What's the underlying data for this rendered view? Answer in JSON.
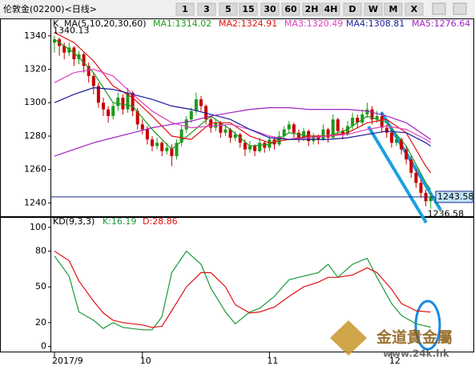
{
  "toolbar": {
    "title": "伦敦金(02200)<日线>",
    "buttons": [
      "1",
      "3",
      "5",
      "15",
      "30",
      "60",
      "2H",
      "4H",
      "D",
      "W",
      "M",
      "X"
    ]
  },
  "watermark": {
    "name": "金道貴金屬",
    "url": "www.24k.hk"
  },
  "chart_data": [
    {
      "type": "candlestick",
      "header": "K",
      "indicator": "MA(5,10,20,30,60)",
      "categories": [
        "2017/9",
        null,
        null,
        null,
        null,
        null,
        null,
        null,
        null,
        null,
        null,
        null,
        null,
        null,
        null,
        null,
        null,
        null,
        "10",
        null,
        null,
        null,
        null,
        null,
        null,
        null,
        null,
        null,
        null,
        null,
        null,
        null,
        null,
        null,
        null,
        null,
        null,
        null,
        null,
        null,
        null,
        null,
        null,
        null,
        "11",
        null,
        null,
        null,
        null,
        null,
        null,
        null,
        null,
        null,
        null,
        null,
        null,
        null,
        null,
        null,
        null,
        null,
        null,
        null,
        null,
        null,
        null,
        null,
        null,
        "12",
        null,
        null,
        null,
        null,
        null,
        null,
        null,
        null
      ],
      "open": [
        1336,
        1338,
        1334,
        1330,
        1333,
        1326,
        1329,
        1322,
        1316,
        1310,
        1300,
        1296,
        1292,
        1298,
        1303,
        1296,
        1306,
        1295,
        1287,
        1284,
        1278,
        1274,
        1276,
        1271,
        1273,
        1268,
        1276,
        1284,
        1290,
        1295,
        1302,
        1298,
        1290,
        1285,
        1288,
        1282,
        1284,
        1279,
        1281,
        1276,
        1272,
        1274,
        1271,
        1276,
        1273,
        1278,
        1275,
        1280,
        1284,
        1287,
        1282,
        1279,
        1283,
        1277,
        1280,
        1278,
        1284,
        1279,
        1290,
        1283,
        1281,
        1286,
        1291,
        1288,
        1293,
        1296,
        1290,
        1292,
        1285,
        1282,
        1276,
        1278,
        1272,
        1266,
        1258,
        1252,
        1246,
        1241
      ],
      "high": [
        1340.13,
        1339,
        1336,
        1336,
        1334,
        1331,
        1330,
        1324,
        1318,
        1312,
        1303,
        1298,
        1300,
        1306,
        1305,
        1309,
        1307,
        1297,
        1290,
        1286,
        1280,
        1279,
        1277,
        1276,
        1275,
        1278,
        1286,
        1292,
        1297,
        1306,
        1304,
        1299,
        1292,
        1290,
        1289,
        1287,
        1285,
        1283,
        1282,
        1278,
        1277,
        1275,
        1279,
        1277,
        1280,
        1279,
        1283,
        1286,
        1289,
        1288,
        1284,
        1285,
        1284,
        1282,
        1281,
        1287,
        1285,
        1293,
        1291,
        1285,
        1289,
        1294,
        1293,
        1296,
        1300,
        1298,
        1295,
        1294,
        1287,
        1284,
        1281,
        1279,
        1274,
        1268,
        1260,
        1254,
        1248,
        1246
      ],
      "low": [
        1330,
        1328,
        1326,
        1328,
        1322,
        1323,
        1318,
        1312,
        1305,
        1297,
        1292,
        1288,
        1290,
        1295,
        1293,
        1294,
        1292,
        1284,
        1281,
        1275,
        1271,
        1272,
        1268,
        1269,
        1262,
        1266,
        1274,
        1282,
        1288,
        1293,
        1295,
        1287,
        1282,
        1283,
        1279,
        1280,
        1276,
        1277,
        1273,
        1268,
        1270,
        1268,
        1270,
        1270,
        1271,
        1272,
        1274,
        1278,
        1282,
        1279,
        1276,
        1277,
        1274,
        1275,
        1275,
        1277,
        1276,
        1278,
        1281,
        1278,
        1280,
        1284,
        1285,
        1286,
        1291,
        1287,
        1288,
        1282,
        1279,
        1273,
        1274,
        1269,
        1263,
        1255,
        1249,
        1243,
        1238,
        1236.58
      ],
      "close": [
        1338,
        1334,
        1330,
        1333,
        1326,
        1329,
        1322,
        1316,
        1310,
        1300,
        1296,
        1292,
        1298,
        1303,
        1296,
        1306,
        1295,
        1287,
        1284,
        1278,
        1274,
        1276,
        1271,
        1273,
        1268,
        1276,
        1284,
        1290,
        1295,
        1302,
        1298,
        1290,
        1285,
        1288,
        1282,
        1284,
        1279,
        1281,
        1276,
        1272,
        1274,
        1271,
        1276,
        1273,
        1278,
        1275,
        1280,
        1284,
        1287,
        1282,
        1279,
        1283,
        1277,
        1280,
        1278,
        1284,
        1279,
        1290,
        1283,
        1281,
        1286,
        1291,
        1288,
        1293,
        1296,
        1290,
        1292,
        1285,
        1282,
        1276,
        1278,
        1272,
        1266,
        1258,
        1252,
        1246,
        1241,
        1243.58
      ],
      "up_color": "#1e9a1e",
      "down_color": "#c80000",
      "price_line_color": "#1c2f8c",
      "ylim": [
        1232,
        1350
      ],
      "yticks": [
        1240,
        1260,
        1280,
        1300,
        1320,
        1340
      ],
      "series": [
        {
          "name": "MA1:1314.02",
          "color": "#1a9a1a",
          "x": [
            0,
            4,
            8,
            12,
            16,
            20,
            24,
            28,
            32,
            36,
            40,
            44,
            48,
            52,
            56,
            60,
            64,
            68,
            72,
            76,
            77
          ],
          "values": [
            1338,
            1330,
            1318,
            1300,
            1298,
            1284,
            1272,
            1282,
            1292,
            1284,
            1274,
            1275,
            1282,
            1280,
            1280,
            1284,
            1292,
            1288,
            1274,
            1252,
            1248
          ]
        },
        {
          "name": "MA2:1324.91",
          "color": "#e01010",
          "x": [
            0,
            4,
            8,
            12,
            16,
            20,
            24,
            28,
            32,
            36,
            40,
            44,
            48,
            52,
            56,
            60,
            64,
            68,
            72,
            76,
            77
          ],
          "values": [
            1342,
            1336,
            1325,
            1310,
            1303,
            1292,
            1280,
            1278,
            1288,
            1288,
            1280,
            1276,
            1278,
            1280,
            1280,
            1282,
            1288,
            1290,
            1282,
            1262,
            1258
          ]
        },
        {
          "name": "MA3:1320.49",
          "color": "#e040c0",
          "x": [
            0,
            4,
            8,
            12,
            16,
            20,
            24,
            28,
            32,
            36,
            40,
            44,
            48,
            52,
            56,
            60,
            64,
            68,
            72,
            76,
            77
          ],
          "values": [
            1312,
            1318,
            1320,
            1316,
            1305,
            1295,
            1288,
            1285,
            1286,
            1287,
            1284,
            1280,
            1278,
            1279,
            1280,
            1281,
            1284,
            1286,
            1284,
            1278,
            1276
          ]
        },
        {
          "name": "MA4:1308.81",
          "color": "#1a1a9a",
          "x": [
            0,
            4,
            8,
            12,
            16,
            20,
            24,
            28,
            32,
            36,
            40,
            44,
            48,
            52,
            56,
            60,
            64,
            68,
            72,
            76,
            77
          ],
          "values": [
            1300,
            1305,
            1309,
            1308,
            1305,
            1302,
            1298,
            1296,
            1293,
            1290,
            1284,
            1279,
            1278,
            1278,
            1278,
            1279,
            1281,
            1283,
            1282,
            1276,
            1274
          ]
        },
        {
          "name": "MA5:1276.64",
          "color": "#a020c0",
          "x": [
            0,
            4,
            8,
            12,
            16,
            20,
            24,
            28,
            32,
            36,
            40,
            44,
            48,
            52,
            56,
            60,
            64,
            68,
            72,
            76,
            77
          ],
          "values": [
            1268,
            1272,
            1276,
            1279,
            1282,
            1285,
            1287,
            1289,
            1292,
            1294,
            1296,
            1297,
            1297,
            1296,
            1296,
            1296,
            1295,
            1292,
            1288,
            1280,
            1278
          ]
        }
      ]
    },
    {
      "type": "line",
      "title": "KD(9,3,3)",
      "ylim": [
        -5,
        108
      ],
      "yticks": [
        0,
        20,
        50,
        80,
        100
      ],
      "series": [
        {
          "name": "K:16.19",
          "color": "#1a9a3a",
          "x": [
            0,
            3,
            5,
            8,
            10,
            12,
            14,
            18,
            20,
            22,
            24,
            27,
            30,
            32,
            35,
            37,
            40,
            42,
            45,
            48,
            51,
            54,
            56,
            58,
            61,
            64,
            66,
            69,
            71,
            74,
            77
          ],
          "values": [
            76,
            59,
            29,
            22,
            15,
            20,
            16,
            14,
            14,
            25,
            62,
            80,
            69,
            49,
            29,
            19,
            29,
            32,
            42,
            56,
            59,
            62,
            69,
            58,
            69,
            74,
            58,
            36,
            26,
            19,
            16.19
          ]
        },
        {
          "name": "D:28.86",
          "color": "#e01010",
          "x": [
            0,
            3,
            5,
            8,
            10,
            12,
            14,
            18,
            20,
            22,
            24,
            27,
            30,
            32,
            35,
            37,
            40,
            42,
            45,
            48,
            51,
            54,
            56,
            58,
            61,
            64,
            66,
            69,
            71,
            74,
            77
          ],
          "values": [
            80,
            72,
            55,
            38,
            28,
            22,
            20,
            18,
            16,
            17,
            30,
            50,
            62,
            62,
            50,
            35,
            28,
            29,
            33,
            42,
            50,
            54,
            58,
            58,
            60,
            66,
            62,
            48,
            36,
            30,
            28.86
          ]
        }
      ]
    }
  ]
}
